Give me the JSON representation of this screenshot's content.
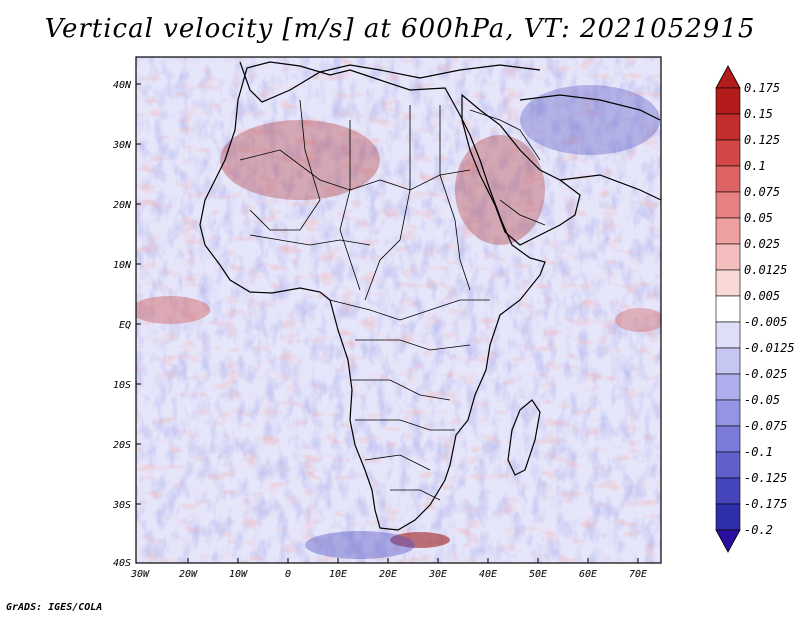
{
  "title": "Vertical velocity [m/s] at 600hPa, VT: 2021052915",
  "credit": "GrADS: IGES/COLA",
  "map": {
    "lat_labels": [
      "40N",
      "30N",
      "20N",
      "10N",
      "EQ",
      "10S",
      "20S",
      "30S",
      "40S"
    ],
    "lon_labels": [
      "30W",
      "20W",
      "10W",
      "0",
      "10E",
      "20E",
      "30E",
      "40E",
      "50E",
      "60E",
      "70E"
    ],
    "lat_range": [
      -40,
      45
    ],
    "lon_range": [
      -30,
      75
    ]
  },
  "colorbar": {
    "labels": [
      "0.175",
      "0.15",
      "0.125",
      "0.1",
      "0.075",
      "0.05",
      "0.025",
      "0.0125",
      "0.005",
      "-0.005",
      "-0.0125",
      "-0.025",
      "-0.05",
      "-0.075",
      "-0.1",
      "-0.125",
      "-0.175",
      "-0.2"
    ],
    "colors": [
      "#e6aaaa",
      "#f0c3c3",
      "#f6d5d5",
      "#fae6e6",
      "#fdf3f3",
      "#ffffff",
      "#eeeeff",
      "#dcdcfa",
      "#c8c8f5",
      "#b4b4f0",
      "#9a9ae8",
      "#7e7ee0",
      "#6262d6",
      "#4848c8",
      "#2f2fb8",
      "#1c1ca6",
      "#0e0e96"
    ],
    "top_color": "#b41c1c",
    "bottom_color": "#2a0fa0",
    "reds": [
      "#b41c1c",
      "#c42d2d",
      "#d24646",
      "#de6464",
      "#e68282",
      "#eea0a0",
      "#f4bebe",
      "#f9d8d8"
    ]
  }
}
